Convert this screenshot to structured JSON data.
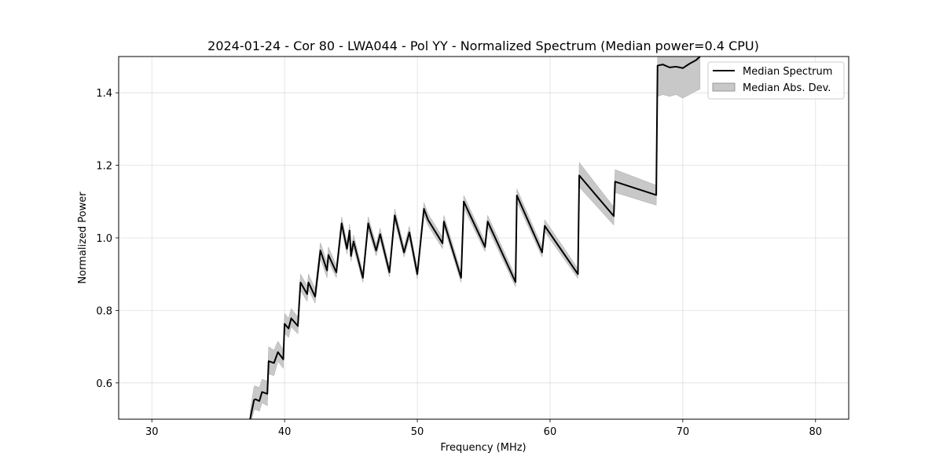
{
  "chart_data": {
    "type": "line",
    "title": "2024-01-24 - Cor 80 - LWA044 - Pol YY - Normalized Spectrum (Median power=0.4 CPU)",
    "xlabel": "Frequency (MHz)",
    "ylabel": "Normalized Power",
    "xlim": [
      27.5,
      82.5
    ],
    "ylim": [
      0.5,
      1.5
    ],
    "xticks": [
      30,
      40,
      50,
      60,
      70,
      80
    ],
    "xtick_labels": [
      "30",
      "40",
      "50",
      "60",
      "70",
      "80"
    ],
    "yticks": [
      0.6,
      0.8,
      1.0,
      1.2,
      1.4
    ],
    "ytick_labels": [
      "0.6",
      "0.8",
      "1.0",
      "1.2",
      "1.4"
    ],
    "grid": true,
    "legend": {
      "placement": "top-right",
      "entries": [
        "Median Spectrum",
        "Median Abs. Dev."
      ]
    },
    "series": [
      {
        "name": "Median Spectrum",
        "color": "#000000",
        "x": [
          37.4,
          37.7,
          37.8,
          38.1,
          38.3,
          38.7,
          38.8,
          39.2,
          39.5,
          39.9,
          40.0,
          40.3,
          40.5,
          41.0,
          41.2,
          41.7,
          41.8,
          42.3,
          42.7,
          43.2,
          43.3,
          43.9,
          44.3,
          44.7,
          44.9,
          45.0,
          45.2,
          45.9,
          46.3,
          46.9,
          47.2,
          47.9,
          48.3,
          49.0,
          49.4,
          50.0,
          50.5,
          50.8,
          51.9,
          52.0,
          53.3,
          53.5,
          55.1,
          55.3,
          57.4,
          57.5,
          59.4,
          59.6,
          62.1,
          62.2,
          64.8,
          64.9,
          68.0,
          68.1,
          68.5,
          69.0,
          69.5,
          70.0,
          70.5,
          71.0,
          71.3
        ],
        "y": [
          0.5,
          0.553,
          0.555,
          0.55,
          0.575,
          0.57,
          0.66,
          0.655,
          0.685,
          0.665,
          0.763,
          0.75,
          0.778,
          0.757,
          0.877,
          0.845,
          0.877,
          0.838,
          0.965,
          0.91,
          0.953,
          0.905,
          1.04,
          0.97,
          1.02,
          0.95,
          0.99,
          0.89,
          1.04,
          0.965,
          1.01,
          0.905,
          1.062,
          0.96,
          1.015,
          0.9,
          1.08,
          1.05,
          0.985,
          1.045,
          0.89,
          1.1,
          0.975,
          1.045,
          0.878,
          1.117,
          0.96,
          1.033,
          0.9,
          1.172,
          1.06,
          1.155,
          1.118,
          1.475,
          1.478,
          1.47,
          1.472,
          1.468,
          1.48,
          1.49,
          1.5
        ]
      },
      {
        "name": "Median Abs. Dev.",
        "type": "band",
        "color": "#c8c8c8",
        "x": [
          37.4,
          37.7,
          37.8,
          38.1,
          38.3,
          38.7,
          38.8,
          39.2,
          39.5,
          39.9,
          40.0,
          40.3,
          40.5,
          41.0,
          41.2,
          41.7,
          41.8,
          42.3,
          42.7,
          43.2,
          43.3,
          43.9,
          44.3,
          44.7,
          44.9,
          45.0,
          45.2,
          45.9,
          46.3,
          46.9,
          47.2,
          47.9,
          48.3,
          49.0,
          49.4,
          50.0,
          50.5,
          50.8,
          51.9,
          52.0,
          53.3,
          53.5,
          55.1,
          55.3,
          57.4,
          57.5,
          59.4,
          59.6,
          62.1,
          62.2,
          64.8,
          64.9,
          68.0,
          68.1,
          68.5,
          69.0,
          69.5,
          70.0,
          70.5,
          71.0,
          71.3
        ],
        "y_low": [
          0.48,
          0.525,
          0.527,
          0.522,
          0.545,
          0.537,
          0.625,
          0.62,
          0.66,
          0.64,
          0.737,
          0.725,
          0.755,
          0.735,
          0.855,
          0.825,
          0.857,
          0.82,
          0.943,
          0.89,
          0.935,
          0.89,
          1.022,
          0.955,
          1.002,
          0.935,
          0.972,
          0.877,
          1.022,
          0.95,
          0.993,
          0.892,
          1.045,
          0.947,
          0.998,
          0.887,
          1.063,
          1.035,
          0.97,
          1.03,
          0.877,
          1.083,
          0.962,
          1.028,
          0.865,
          1.1,
          0.947,
          1.017,
          0.888,
          1.14,
          1.035,
          1.125,
          1.09,
          1.39,
          1.395,
          1.39,
          1.395,
          1.385,
          1.395,
          1.405,
          1.41
        ],
        "y_high": [
          0.52,
          0.59,
          0.592,
          0.587,
          0.61,
          0.605,
          0.7,
          0.69,
          0.715,
          0.692,
          0.792,
          0.778,
          0.805,
          0.782,
          0.9,
          0.868,
          0.9,
          0.86,
          0.987,
          0.932,
          0.975,
          0.925,
          1.058,
          0.988,
          1.038,
          0.968,
          1.008,
          0.905,
          1.058,
          0.982,
          1.027,
          0.92,
          1.08,
          0.975,
          1.032,
          0.915,
          1.097,
          1.067,
          1.002,
          1.062,
          0.905,
          1.117,
          0.99,
          1.062,
          0.893,
          1.135,
          0.975,
          1.05,
          0.915,
          1.208,
          1.085,
          1.188,
          1.145,
          1.5,
          1.5,
          1.5,
          1.5,
          1.5,
          1.5,
          1.5,
          1.5
        ]
      }
    ]
  }
}
